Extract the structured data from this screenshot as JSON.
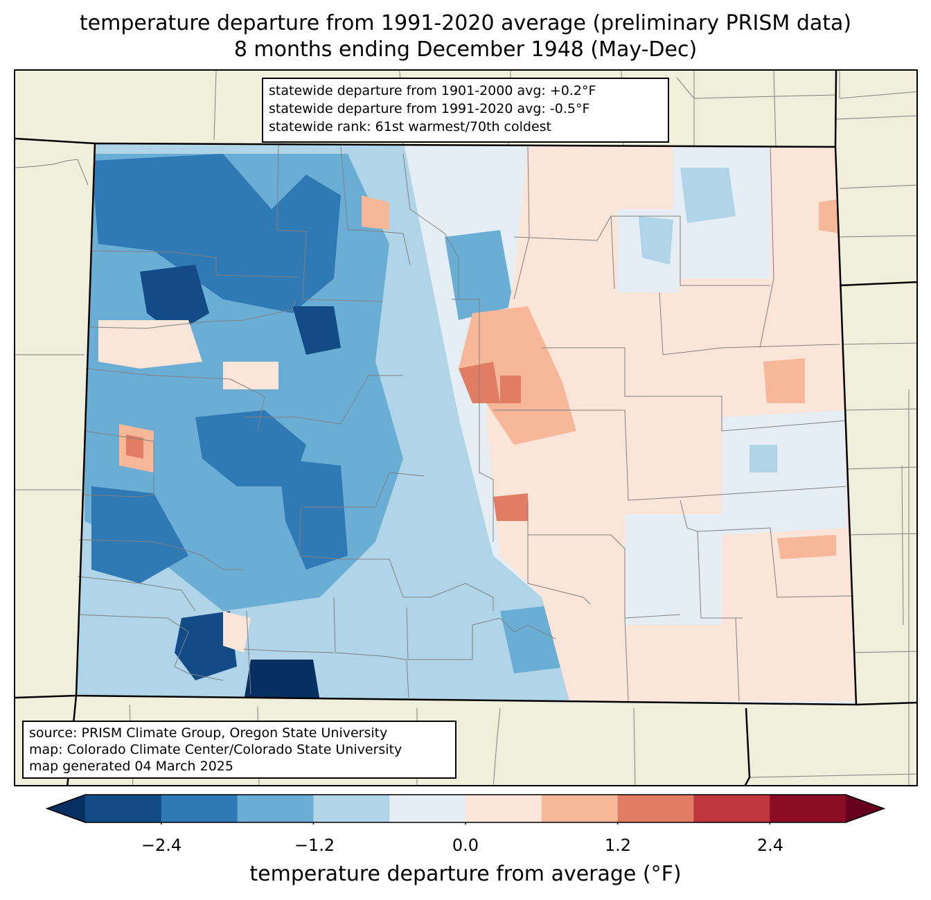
{
  "title_line1": "temperature departure from 1991-2020 average (preliminary PRISM data)",
  "title_line2": "8 months ending December 1948 (May-Dec)",
  "stats": {
    "line1": "statewide departure from 1901-2000 avg: +0.2°F",
    "line2": "statewide departure from 1991-2020 avg: -0.5°F",
    "line3": "statewide rank: 61st warmest/70th coldest"
  },
  "source": {
    "line1": "source: PRISM Climate Group, Oregon State University",
    "line2": "map: Colorado Climate Center/Colorado State University",
    "line3": "map generated 04 March 2025"
  },
  "colorbar": {
    "label": "temperature departure from average (°F)",
    "ticks": [
      "−2.4",
      "−1.2",
      "0.0",
      "1.2",
      "2.4"
    ],
    "tick_values": [
      -2.4,
      -1.2,
      0.0,
      1.2,
      2.4
    ],
    "levels": [
      -3.0,
      -2.4,
      -1.8,
      -1.2,
      -0.6,
      0.0,
      0.6,
      1.2,
      1.8,
      2.4,
      3.0
    ],
    "colors": [
      "#053061",
      "#134b87",
      "#2f79b5",
      "#6aaed6",
      "#b0d4e8",
      "#e5eef4",
      "#fbe4d8",
      "#f7b799",
      "#e27d65",
      "#c0363c",
      "#8b0c25",
      "#67001f"
    ]
  },
  "colors": {
    "land": "#f0efdc",
    "county_lines": "#808080"
  }
}
